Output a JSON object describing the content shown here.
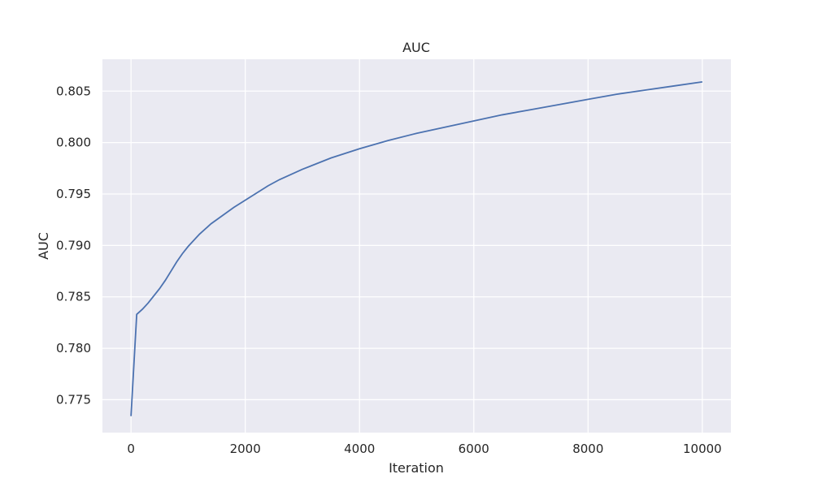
{
  "chart_data": {
    "type": "line",
    "title": "AUC",
    "xlabel": "Iteration",
    "ylabel": "AUC",
    "xlim": [
      -500,
      10500
    ],
    "ylim": [
      0.7718,
      0.8081
    ],
    "xticks": [
      0,
      2000,
      4000,
      6000,
      8000,
      10000
    ],
    "xtick_labels": [
      "0",
      "2000",
      "4000",
      "6000",
      "8000",
      "10000"
    ],
    "yticks": [
      0.775,
      0.78,
      0.785,
      0.79,
      0.795,
      0.8,
      0.805
    ],
    "ytick_labels": [
      "0.775",
      "0.780",
      "0.785",
      "0.790",
      "0.795",
      "0.800",
      "0.805"
    ],
    "grid": true,
    "colors": {
      "background": "#eaeaf2",
      "grid": "#ffffff",
      "line": "#4c72b0"
    },
    "series": [
      {
        "x": [
          0,
          100,
          200,
          300,
          400,
          500,
          600,
          700,
          800,
          900,
          1000,
          1200,
          1400,
          1600,
          1800,
          2000,
          2200,
          2400,
          2600,
          2800,
          3000,
          3500,
          4000,
          4500,
          5000,
          5500,
          6000,
          6500,
          7000,
          7500,
          8000,
          8500,
          9000,
          9500,
          10000
        ],
        "y": [
          0.7734,
          0.7833,
          0.7838,
          0.7844,
          0.7851,
          0.7858,
          0.7866,
          0.7875,
          0.7884,
          0.7892,
          0.7899,
          0.7911,
          0.7921,
          0.7929,
          0.7937,
          0.7944,
          0.7951,
          0.7958,
          0.7964,
          0.7969,
          0.7974,
          0.7985,
          0.7994,
          0.8002,
          0.8009,
          0.8015,
          0.8021,
          0.8027,
          0.8032,
          0.8037,
          0.8042,
          0.8047,
          0.8051,
          0.8055,
          0.8059
        ]
      }
    ]
  }
}
